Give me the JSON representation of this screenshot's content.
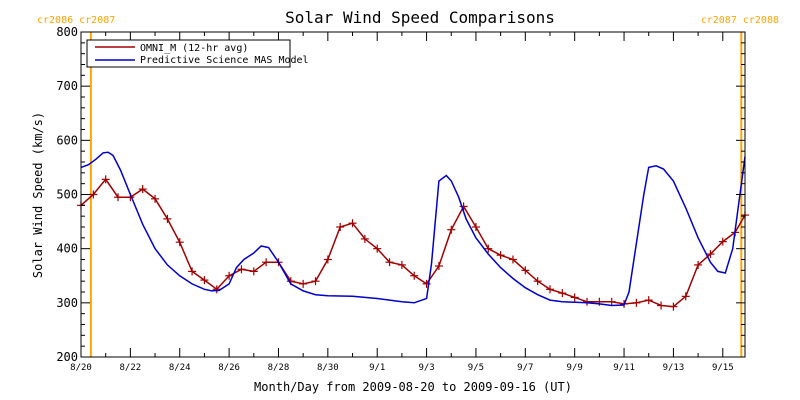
{
  "chart_data": {
    "type": "line",
    "title": "Solar Wind Speed Comparisons",
    "xlabel": "Month/Day from 2009-08-20 to 2009-09-16 (UT)",
    "ylabel": "Solar Wind Speed (km/s)",
    "xlim": [
      0,
      26.9
    ],
    "ylim": [
      200,
      800
    ],
    "yticks": [
      200,
      300,
      400,
      500,
      600,
      700,
      800
    ],
    "xticks": [
      {
        "x": 0,
        "label": "8/20"
      },
      {
        "x": 2,
        "label": "8/22"
      },
      {
        "x": 4,
        "label": "8/24"
      },
      {
        "x": 6,
        "label": "8/26"
      },
      {
        "x": 8,
        "label": "8/28"
      },
      {
        "x": 10,
        "label": "8/30"
      },
      {
        "x": 12,
        "label": "9/1"
      },
      {
        "x": 14,
        "label": "9/3"
      },
      {
        "x": 16,
        "label": "9/5"
      },
      {
        "x": 18,
        "label": "9/7"
      },
      {
        "x": 20,
        "label": "9/9"
      },
      {
        "x": 22,
        "label": "9/11"
      },
      {
        "x": 24,
        "label": "9/13"
      },
      {
        "x": 26,
        "label": "9/15"
      }
    ],
    "rotation_markers": [
      {
        "x": 0.4,
        "label": "cr2086 cr2087",
        "label_position": "left"
      },
      {
        "x": 26.75,
        "label": "cr2087 cr2088",
        "label_position": "right"
      }
    ],
    "legend_position": "top-left",
    "colors": {
      "omni": "#a00000",
      "model": "#0000cc",
      "marker": "#ffa500",
      "axes": "#000000",
      "title": "#000000"
    },
    "series": [
      {
        "name": "OMNI_M (12-hr avg)",
        "color": "#a00000",
        "marker": "+",
        "x": [
          0,
          0.5,
          1,
          1.5,
          2,
          2.5,
          3,
          3.5,
          4,
          4.5,
          5,
          5.5,
          6,
          6.5,
          7,
          7.5,
          8,
          8.5,
          9,
          9.5,
          10,
          10.5,
          11,
          11.5,
          12,
          12.5,
          13,
          13.5,
          14,
          14.5,
          15,
          15.5,
          16,
          16.5,
          17,
          17.5,
          18,
          18.5,
          19,
          19.5,
          20,
          20.5,
          21,
          21.5,
          22,
          22.5,
          23,
          23.5,
          24,
          24.5,
          25,
          25.5,
          26,
          26.5,
          26.9
        ],
        "y": [
          480,
          500,
          528,
          495,
          495,
          510,
          492,
          455,
          412,
          358,
          342,
          325,
          350,
          362,
          358,
          375,
          375,
          340,
          335,
          340,
          380,
          440,
          447,
          418,
          400,
          375,
          370,
          350,
          335,
          368,
          435,
          478,
          440,
          400,
          388,
          380,
          360,
          340,
          325,
          318,
          310,
          302,
          302,
          302,
          298,
          300,
          305,
          295,
          293,
          312,
          370,
          390,
          413,
          430,
          462
        ]
      },
      {
        "name": "Predictive Science MAS Model",
        "color": "#0000cc",
        "marker": "",
        "x": [
          0,
          0.3,
          0.6,
          0.9,
          1.1,
          1.3,
          1.6,
          2,
          2.5,
          3,
          3.5,
          4,
          4.5,
          5,
          5.3,
          5.6,
          6,
          6.3,
          6.6,
          7,
          7.3,
          7.6,
          8,
          8.5,
          9,
          9.5,
          10,
          11,
          12,
          13,
          13.5,
          14,
          14.2,
          14.5,
          14.8,
          15,
          15.3,
          15.6,
          16,
          16.5,
          17,
          17.5,
          18,
          18.5,
          19,
          19.5,
          20,
          20.5,
          21,
          21.5,
          22,
          22.2,
          22.5,
          22.8,
          23,
          23.3,
          23.6,
          24,
          24.5,
          25,
          25.5,
          25.8,
          26.1,
          26.4,
          26.9
        ],
        "y": [
          550,
          555,
          565,
          577,
          578,
          572,
          545,
          500,
          445,
          400,
          370,
          350,
          335,
          325,
          322,
          323,
          335,
          365,
          380,
          392,
          405,
          402,
          375,
          335,
          322,
          315,
          313,
          312,
          308,
          302,
          300,
          308,
          372,
          525,
          535,
          525,
          495,
          455,
          420,
          390,
          365,
          345,
          328,
          315,
          305,
          302,
          301,
          300,
          298,
          295,
          296,
          320,
          410,
          500,
          550,
          553,
          547,
          525,
          475,
          420,
          375,
          358,
          355,
          400,
          570
        ]
      }
    ]
  }
}
